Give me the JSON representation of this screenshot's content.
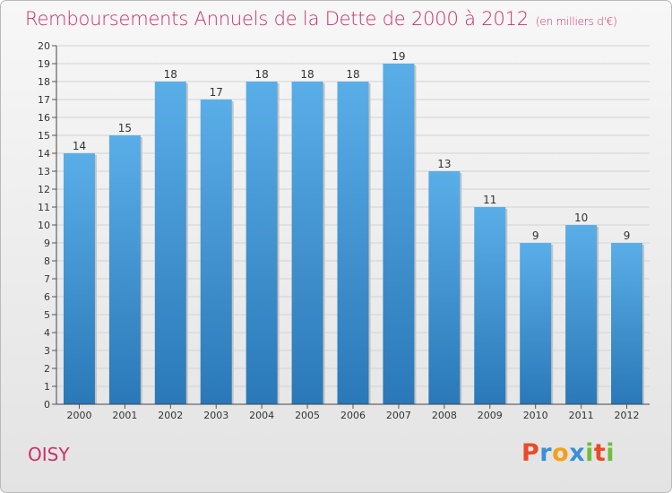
{
  "title": "Remboursements Annuels de la Dette de 2000 à 2012",
  "unit": "(en milliers d'€)",
  "commune": "OISY",
  "logo": {
    "letters": [
      "P",
      "r",
      "o",
      "x",
      "i",
      "t",
      "i"
    ],
    "colors": [
      "#e94a2a",
      "#3a8fd6",
      "#f2a11a",
      "#3a8fd6",
      "#6cbf3a",
      "#e94a2a",
      "#6cbf3a"
    ]
  },
  "colors": {
    "bar_top": "#5aaee8",
    "bar_bottom": "#2a78b8",
    "title": "#c8306a"
  },
  "chart_data": {
    "type": "bar",
    "title": "Remboursements Annuels de la Dette de 2000 à 2012",
    "xlabel": "",
    "ylabel": "",
    "ylim": [
      0,
      20
    ],
    "yticks": [
      0,
      1,
      2,
      3,
      4,
      5,
      6,
      7,
      8,
      9,
      10,
      11,
      12,
      13,
      14,
      15,
      16,
      17,
      18,
      19,
      20
    ],
    "categories": [
      "2000",
      "2001",
      "2002",
      "2003",
      "2004",
      "2005",
      "2006",
      "2007",
      "2008",
      "2009",
      "2010",
      "2011",
      "2012"
    ],
    "values": [
      14,
      15,
      18,
      17,
      18,
      18,
      18,
      19,
      13,
      11,
      9,
      10,
      9
    ],
    "data_labels": [
      "14",
      "15",
      "18",
      "17",
      "18",
      "18",
      "18",
      "19",
      "13",
      "11",
      "9",
      "10",
      "9"
    ]
  }
}
